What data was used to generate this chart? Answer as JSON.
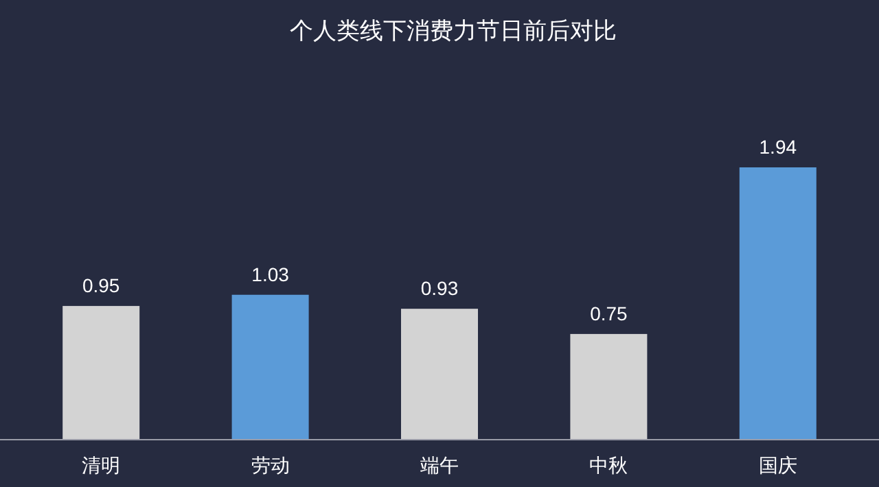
{
  "chart_data": {
    "type": "bar",
    "title": "个人类线下消费力节日前后对比",
    "categories": [
      "清明",
      "劳动",
      "端午",
      "中秋",
      "国庆"
    ],
    "values": [
      0.95,
      1.03,
      0.93,
      0.75,
      1.94
    ],
    "colors": [
      "#d3d3d3",
      "#5b9bd8",
      "#d3d3d3",
      "#d3d3d3",
      "#5b9bd8"
    ],
    "data_labels": true
  }
}
